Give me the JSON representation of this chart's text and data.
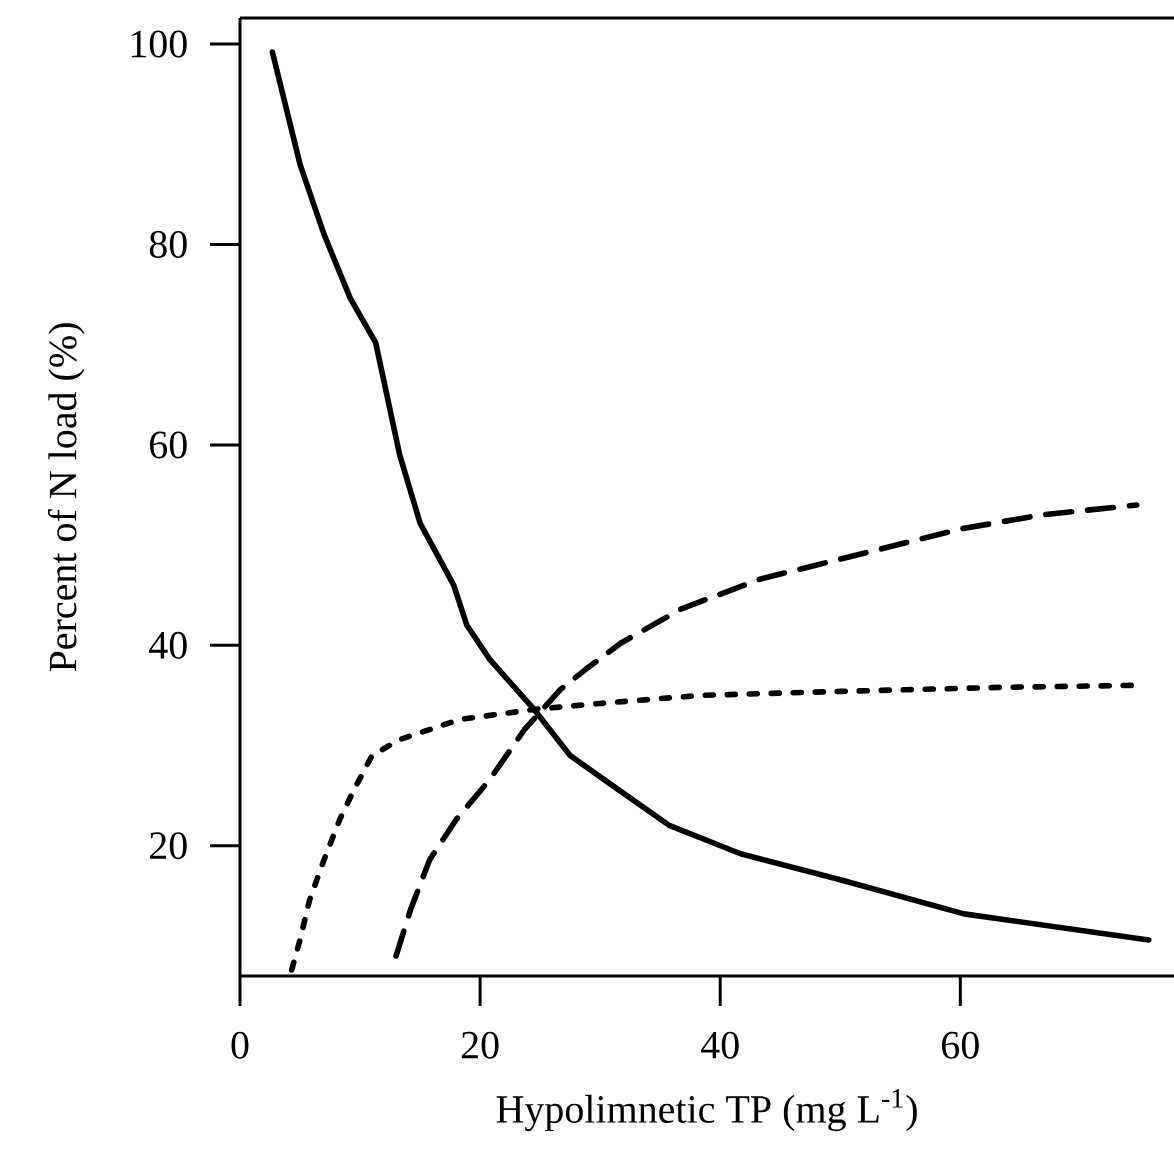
{
  "chart_data": {
    "type": "line",
    "xlabel": "Hypolimnetic TP (mg L$^{-1}$)",
    "ylabel": "Percent of N load (%)",
    "xlim": [
      0,
      77.8
    ],
    "ylim": [
      7,
      102.6
    ],
    "xticks": [
      0,
      20,
      40,
      60
    ],
    "yticks": [
      20,
      40,
      60,
      80,
      100
    ],
    "marker": "none",
    "series": [
      {
        "color": "#000000",
        "line_style": "solid",
        "x": [
          2.7,
          5,
          7,
          9.2,
          11.3,
          13.3,
          15,
          17.8,
          18.9,
          20.8,
          24.5,
          27.5,
          30.8,
          35.8,
          41.7,
          50,
          60.3,
          75.7
        ],
        "values": [
          99.2,
          88,
          81,
          74.6,
          70.2,
          59,
          52.2,
          46,
          42,
          38.6,
          33.6,
          29,
          26.2,
          22,
          19.2,
          16.6,
          13.2,
          10.6
        ]
      },
      {
        "color": "#000000",
        "line_style": "dashed",
        "x": [
          13,
          14.2,
          15.8,
          18,
          20.8,
          23.7,
          26.7,
          28.8,
          31.7,
          36.7,
          43.3,
          50,
          60,
          66.7,
          74.7
        ],
        "values": [
          9,
          13.6,
          18.6,
          22.6,
          26.6,
          31.6,
          35.6,
          37.6,
          40.2,
          43.6,
          46.6,
          48.6,
          51.6,
          53,
          54
        ]
      },
      {
        "color": "#000000",
        "line_style": "dotted",
        "x": [
          4.3,
          5,
          5.8,
          7,
          8.3,
          9.5,
          11,
          13.3,
          18.3,
          24.5,
          30,
          38.3,
          50,
          63.3,
          74.3
        ],
        "values": [
          7.6,
          10.6,
          14.6,
          18.6,
          22.6,
          25.6,
          29,
          30.6,
          32.6,
          33.6,
          34.2,
          35,
          35.4,
          35.8,
          36
        ]
      }
    ]
  }
}
